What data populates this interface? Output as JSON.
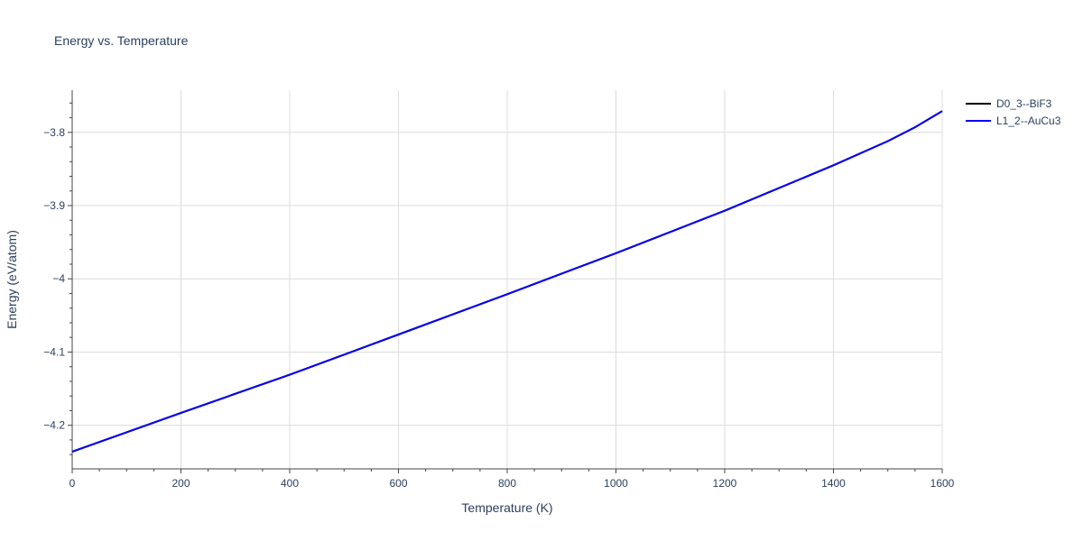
{
  "chart_data": {
    "type": "line",
    "title": "Energy vs. Temperature",
    "xlabel": "Temperature (K)",
    "ylabel": "Energy (eV/atom)",
    "xlim": [
      0,
      1600
    ],
    "ylim": [
      -4.2595,
      -3.7424
    ],
    "x_ticks": [
      0,
      200,
      400,
      600,
      800,
      1000,
      1200,
      1400,
      1600
    ],
    "x_tick_labels": [
      "0",
      "200",
      "400",
      "600",
      "800",
      "1000",
      "1200",
      "1400",
      "1600"
    ],
    "y_ticks": [
      -3.8,
      -3.9,
      -4.0,
      -4.1,
      -4.2
    ],
    "y_tick_labels": [
      "−3.8",
      "−3.9",
      "−4",
      "−4.1",
      "−4.2"
    ],
    "grid": true,
    "legend_position": "top-right",
    "series": [
      {
        "name": "D0_3--BiF3",
        "color": "#000000",
        "x": [
          0,
          200,
          400,
          600,
          800,
          1000,
          1200,
          1400,
          1500,
          1550,
          1600
        ],
        "y": [
          -4.236,
          -4.183,
          -4.131,
          -4.076,
          -4.021,
          -3.965,
          -3.907,
          -3.845,
          -3.812,
          -3.793,
          -3.771
        ]
      },
      {
        "name": "L1_2--AuCu3",
        "color": "#0000ff",
        "x": [
          0,
          200,
          400,
          600,
          800,
          1000,
          1200,
          1400,
          1500,
          1550,
          1600
        ],
        "y": [
          -4.236,
          -4.183,
          -4.131,
          -4.076,
          -4.021,
          -3.965,
          -3.907,
          -3.845,
          -3.812,
          -3.793,
          -3.771
        ]
      }
    ]
  }
}
